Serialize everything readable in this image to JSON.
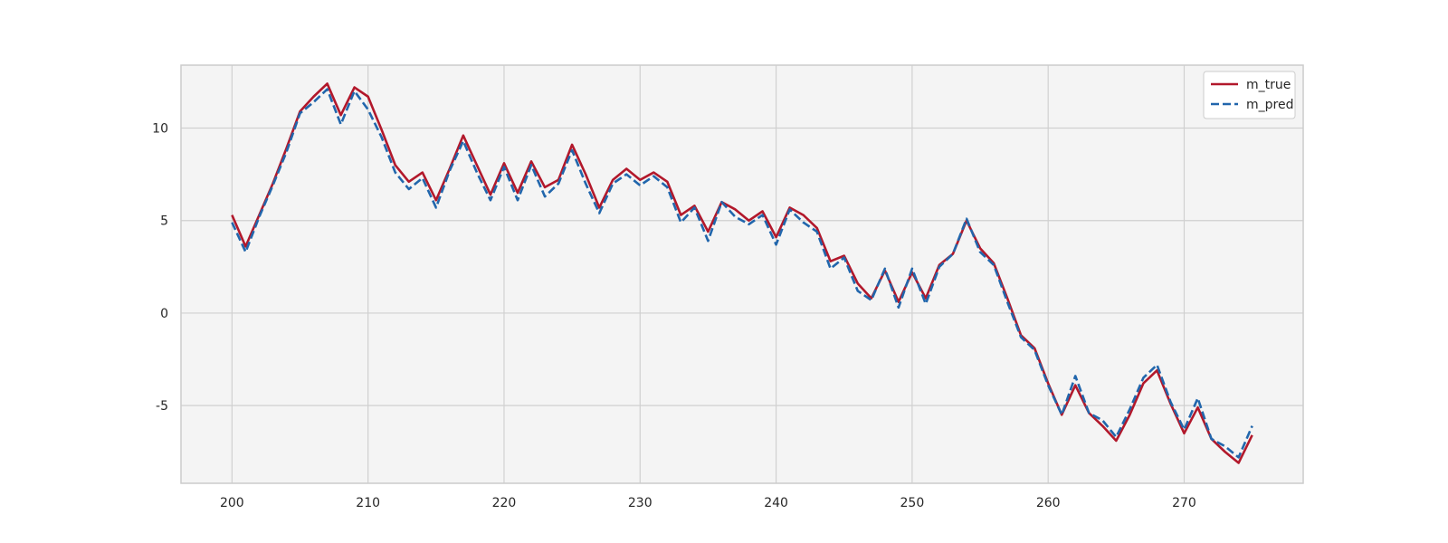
{
  "chart_data": {
    "type": "line",
    "title": "",
    "xlabel": "",
    "ylabel": "",
    "xlim": [
      196.25,
      278.75
    ],
    "ylim": [
      -9.2,
      13.4
    ],
    "x_ticks": [
      200,
      210,
      220,
      230,
      240,
      250,
      260,
      270
    ],
    "y_ticks": [
      -5,
      0,
      5,
      10
    ],
    "y_tick_labels": [
      "-5",
      "0",
      "5",
      "10"
    ],
    "grid": true,
    "legend_position": "top-right",
    "x": [
      200,
      201,
      202,
      203,
      204,
      205,
      206,
      207,
      208,
      209,
      210,
      211,
      212,
      213,
      214,
      215,
      216,
      217,
      218,
      219,
      220,
      221,
      222,
      223,
      224,
      225,
      226,
      227,
      228,
      229,
      230,
      231,
      232,
      233,
      234,
      235,
      236,
      237,
      238,
      239,
      240,
      241,
      242,
      243,
      244,
      245,
      246,
      247,
      248,
      249,
      250,
      251,
      252,
      253,
      254,
      255,
      256,
      257,
      258,
      259,
      260,
      261,
      262,
      263,
      264,
      265,
      266,
      267,
      268,
      269,
      270,
      271,
      272,
      273,
      274,
      275
    ],
    "series": [
      {
        "name": "m_true",
        "color": "#b2182b",
        "style": "solid",
        "values": [
          5.3,
          3.6,
          5.3,
          7.0,
          8.9,
          10.9,
          11.7,
          12.4,
          10.7,
          12.2,
          11.7,
          9.9,
          8.0,
          7.1,
          7.6,
          6.1,
          7.8,
          9.6,
          8.0,
          6.4,
          8.1,
          6.5,
          8.2,
          6.8,
          7.2,
          9.1,
          7.5,
          5.7,
          7.2,
          7.8,
          7.2,
          7.6,
          7.1,
          5.3,
          5.8,
          4.4,
          6.0,
          5.6,
          5.0,
          5.5,
          4.1,
          5.7,
          5.3,
          4.6,
          2.8,
          3.1,
          1.6,
          0.8,
          2.3,
          0.6,
          2.2,
          0.8,
          2.6,
          3.2,
          5.0,
          3.5,
          2.7,
          0.8,
          -1.2,
          -1.9,
          -3.8,
          -5.5,
          -3.9,
          -5.4,
          -6.1,
          -6.9,
          -5.5,
          -3.8,
          -3.1,
          -4.9,
          -6.5,
          -5.1,
          -6.8,
          -7.5,
          -8.1,
          -6.6
        ]
      },
      {
        "name": "m_pred",
        "color": "#2166ac",
        "style": "dashed",
        "values": [
          4.9,
          3.3,
          5.2,
          6.9,
          8.7,
          10.8,
          11.4,
          12.1,
          10.2,
          12.0,
          11.0,
          9.5,
          7.6,
          6.7,
          7.3,
          5.7,
          7.7,
          9.3,
          7.6,
          6.1,
          7.9,
          6.1,
          8.0,
          6.3,
          7.0,
          8.8,
          7.0,
          5.4,
          7.0,
          7.5,
          6.9,
          7.4,
          6.8,
          4.9,
          5.7,
          3.9,
          6.0,
          5.2,
          4.8,
          5.3,
          3.7,
          5.6,
          4.9,
          4.4,
          2.4,
          3.0,
          1.2,
          0.7,
          2.4,
          0.3,
          2.4,
          0.5,
          2.5,
          3.2,
          5.1,
          3.3,
          2.6,
          0.6,
          -1.3,
          -2.0,
          -3.9,
          -5.5,
          -3.4,
          -5.4,
          -5.8,
          -6.7,
          -5.2,
          -3.5,
          -2.8,
          -4.8,
          -6.3,
          -4.6,
          -6.8,
          -7.2,
          -7.8,
          -6.1
        ]
      }
    ]
  }
}
